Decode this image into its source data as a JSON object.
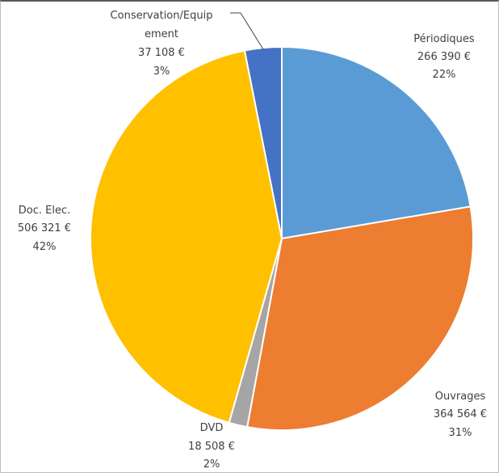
{
  "chart_data": {
    "type": "pie",
    "title": "",
    "start_angle_deg": 0,
    "direction": "clockwise",
    "slices": [
      {
        "name": "Périodiques",
        "amount": "266 390 €",
        "percent": "22%",
        "value": 266390,
        "color": "#5b9bd5"
      },
      {
        "name": "Ouvrages",
        "amount": "364 564 €",
        "percent": "31%",
        "value": 364564,
        "color": "#ed7d31"
      },
      {
        "name": "DVD",
        "amount": "18 508 €",
        "percent": "2%",
        "value": 18508,
        "color": "#a5a5a5"
      },
      {
        "name": "Doc. Elec.",
        "amount": "506 321 €",
        "percent": "42%",
        "value": 506321,
        "color": "#ffc000"
      },
      {
        "name": "Conservation/Equipement",
        "name_line1": "Conservation/Equip",
        "name_line2": "ement",
        "amount": "37 108 €",
        "percent": "3%",
        "value": 37108,
        "color": "#4472c4"
      }
    ]
  }
}
